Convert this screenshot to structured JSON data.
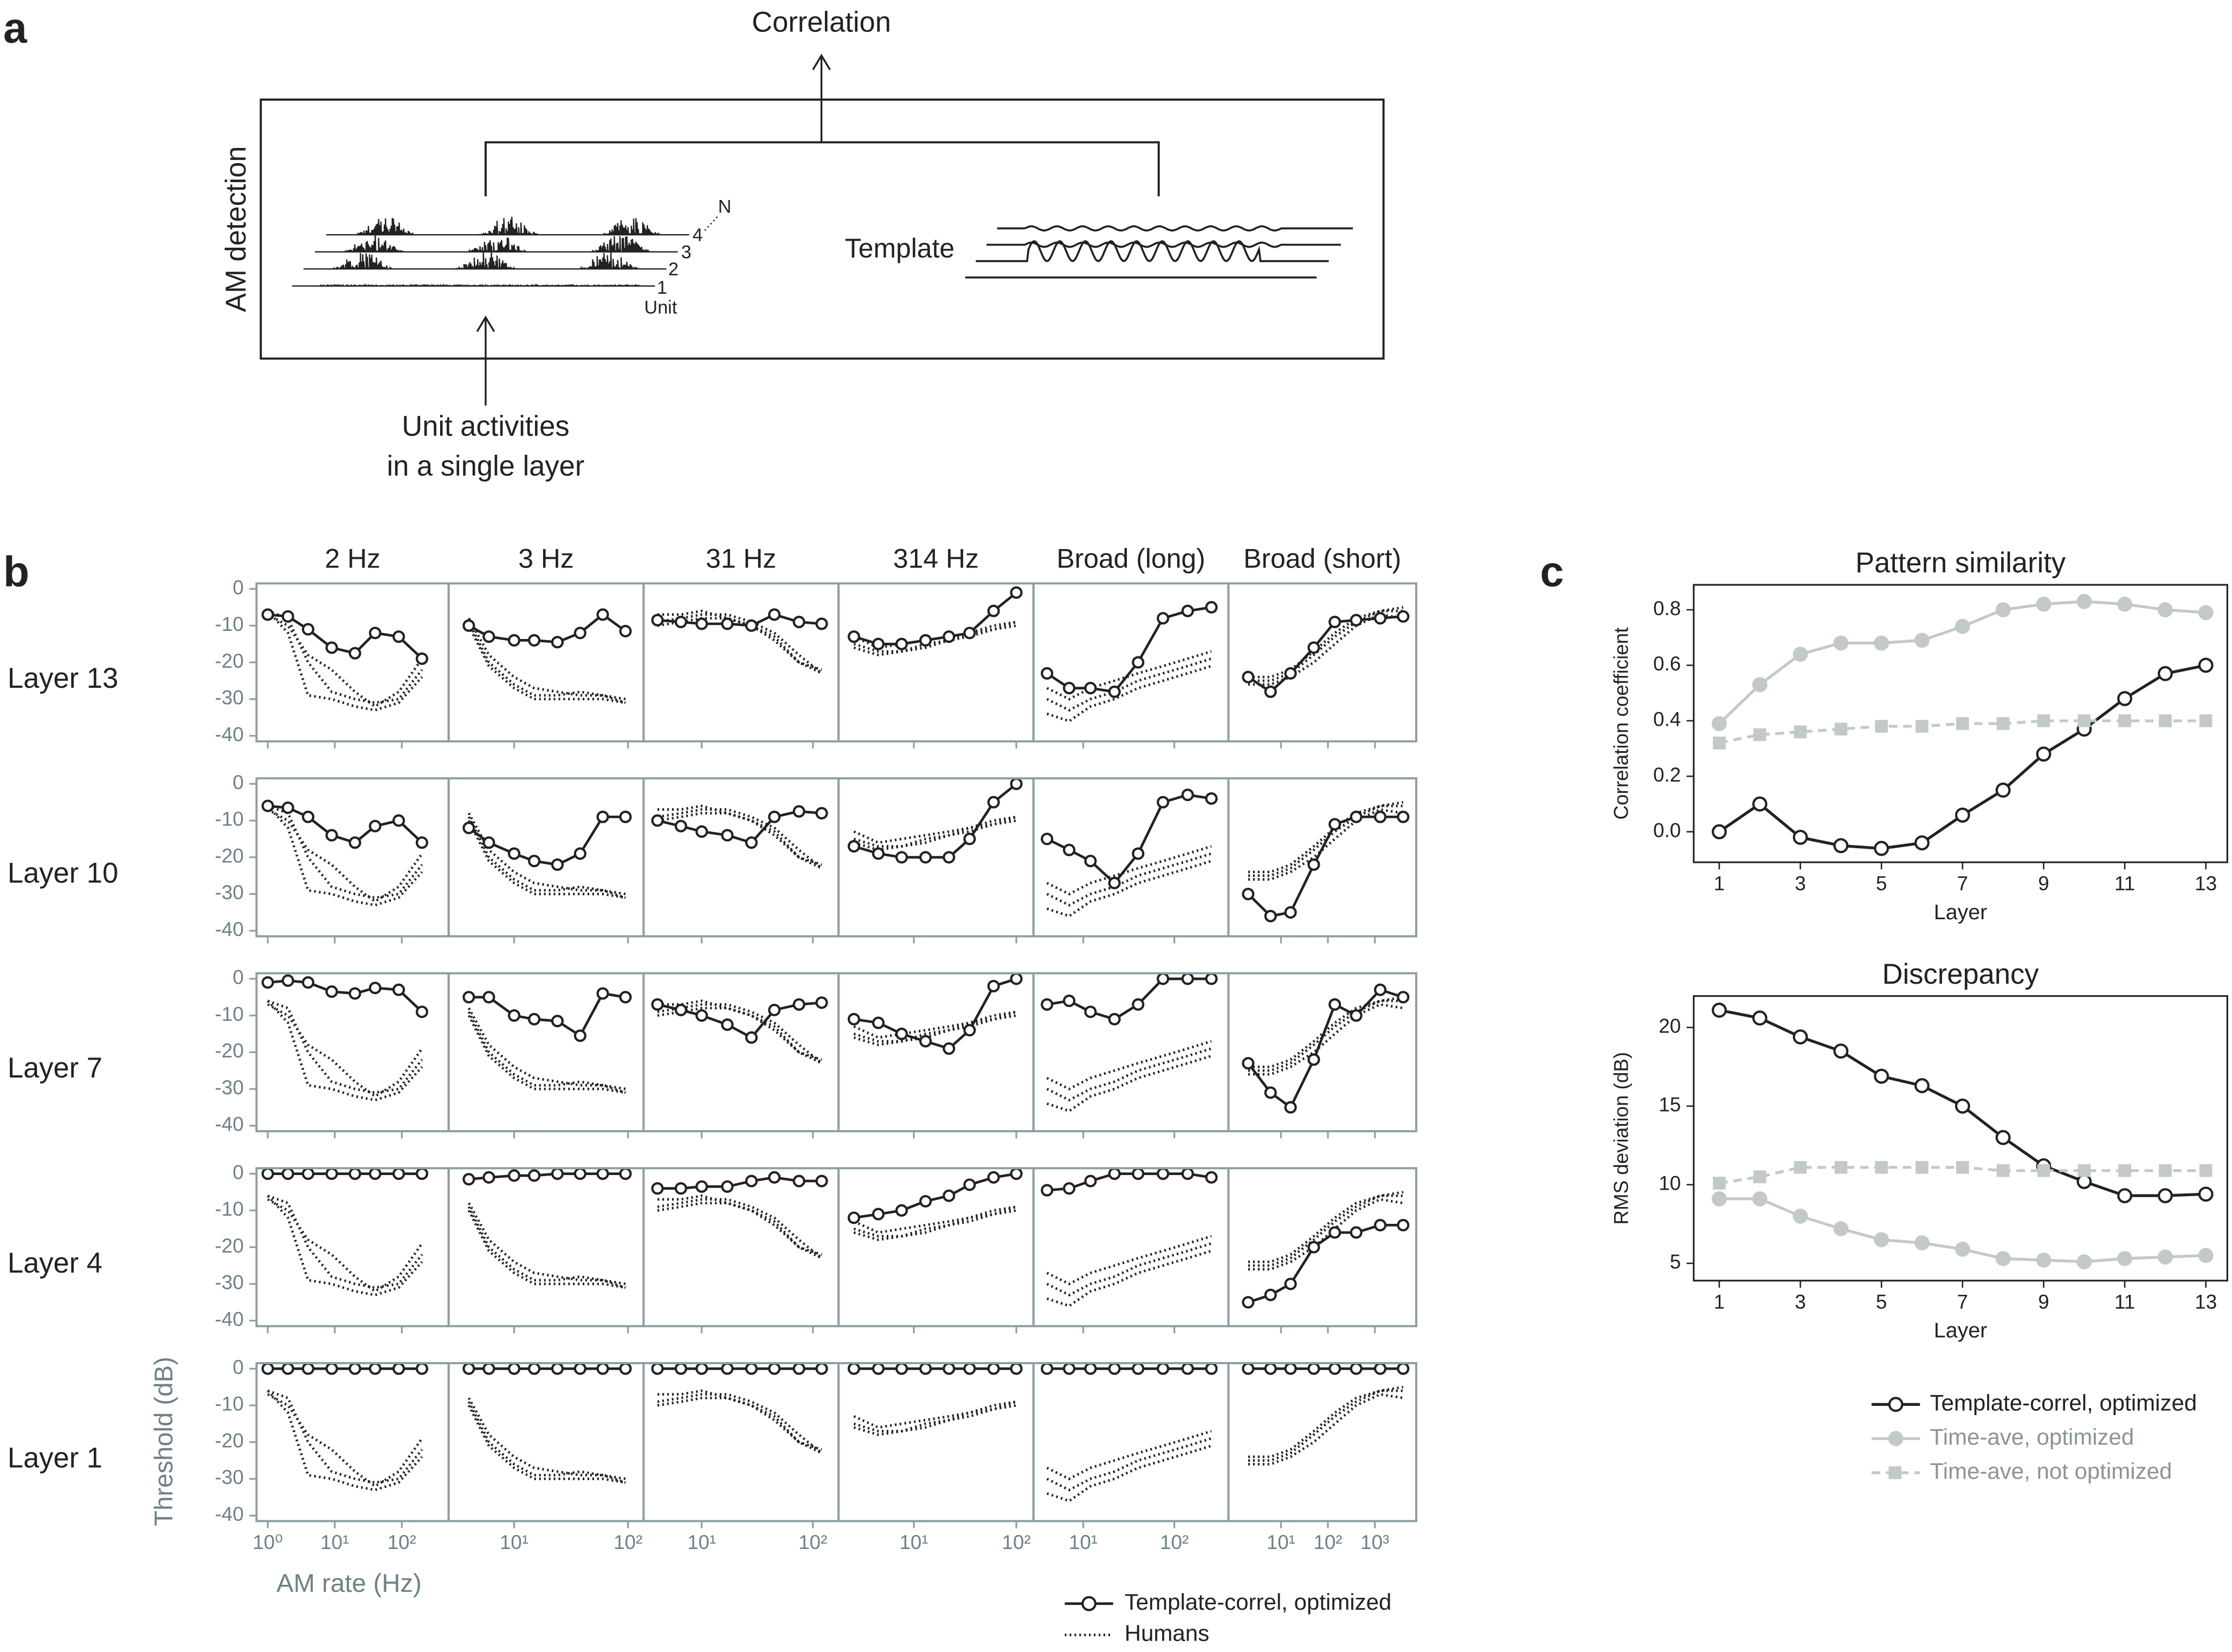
{
  "panel_labels": [
    "a",
    "b",
    "c"
  ],
  "diagram": {
    "title": "Correlation",
    "side_label": "AM detection",
    "template_label": "Template",
    "unit_label": "Unit",
    "unit_numbers": [
      "1",
      "2",
      "3",
      "4",
      "N"
    ],
    "input_label": [
      "Unit activities",
      "in a single layer"
    ]
  },
  "chart_data": [
    {
      "type": "facets",
      "columns": [
        "2 Hz",
        "3 Hz",
        "31 Hz",
        "314 Hz",
        "Broad (long)",
        "Broad (short)"
      ],
      "rows": [
        "Layer 13",
        "Layer 10",
        "Layer 7",
        "Layer 4",
        "Layer 1"
      ],
      "ylabel": "Threshold (dB)",
      "xlabel": "AM rate (Hz)",
      "x_scale": "log",
      "ylim": [
        -41.5,
        1.5
      ],
      "yticks": [
        0,
        -10,
        -20,
        -30,
        -40
      ],
      "series": [
        {
          "name": "Template-correl, optimized",
          "color": "#222222",
          "dash": "solid"
        },
        {
          "name": "Humans",
          "color": "#222222",
          "dash": "dotted"
        }
      ],
      "panels": [
        {
          "xlim": [
            0.68,
            500
          ],
          "xticks": [
            {
              "value": 1,
              "label": "10⁰"
            },
            {
              "value": 10,
              "label": "10¹"
            },
            {
              "value": 100,
              "label": "10²"
            }
          ],
          "x": [
            1,
            2,
            4,
            9,
            20,
            40,
            90,
            200
          ],
          "template": [
            [
              -7,
              -7.5,
              -11,
              -16,
              -17.5,
              -12,
              -13,
              -19
            ],
            [
              -6,
              -6.5,
              -9,
              -14,
              -16,
              -11.5,
              -10,
              -16
            ],
            [
              -1,
              -0.5,
              -1,
              -3.5,
              -4,
              -2.5,
              -3,
              -9
            ],
            [
              0,
              0,
              0,
              0,
              0,
              0,
              0,
              0
            ],
            [
              0,
              0,
              0,
              0,
              0,
              0,
              0,
              0
            ]
          ],
          "humans": [
            [
              -6,
              -8,
              -20,
              -28,
              -30,
              -31,
              -30,
              -22
            ],
            [
              -7,
              -10,
              -18,
              -22,
              -28,
              -32,
              -28,
              -19
            ],
            [
              -6,
              -12,
              -29,
              -30,
              -32,
              -33,
              -31,
              -24
            ]
          ]
        },
        {
          "xlim": [
            2.66,
            137
          ],
          "xticks": [
            {
              "value": 10,
              "label": "10¹"
            },
            {
              "value": 100,
              "label": "10²"
            }
          ],
          "x": [
            4,
            6,
            10,
            15,
            24,
            38,
            60,
            95
          ],
          "template": [
            [
              -10,
              -13,
              -14,
              -14,
              -14.5,
              -12,
              -7,
              -11.5
            ],
            [
              -12,
              -16,
              -19,
              -21,
              -22,
              -19,
              -9,
              -9
            ],
            [
              -5,
              -5,
              -10,
              -11,
              -11.5,
              -15.5,
              -4,
              -5
            ],
            [
              -1.5,
              -1,
              -0.5,
              -0.5,
              0,
              0,
              0,
              0
            ],
            [
              0,
              0,
              0,
              0,
              0,
              0,
              0,
              0
            ]
          ],
          "humans": [
            [
              -8,
              -18,
              -24,
              -27,
              -28,
              -29,
              -29,
              -30
            ],
            [
              -9,
              -20,
              -26,
              -29,
              -29,
              -28,
              -29,
              -31
            ],
            [
              -10,
              -21,
              -27,
              -30,
              -30,
              -30,
              -30,
              -31
            ]
          ]
        },
        {
          "xlim": [
            3,
            170
          ],
          "xticks": [
            {
              "value": 10,
              "label": "10¹"
            },
            {
              "value": 100,
              "label": "10²"
            }
          ],
          "x": [
            4,
            6.5,
            10,
            17,
            28,
            45,
            75,
            120
          ],
          "template": [
            [
              -8.5,
              -9,
              -9.5,
              -9.5,
              -10,
              -7,
              -9,
              -9.5
            ],
            [
              -10,
              -11.5,
              -13,
              -14,
              -16,
              -9,
              -7.5,
              -8
            ],
            [
              -7,
              -8.5,
              -10,
              -12.5,
              -16,
              -8.5,
              -7,
              -6.5
            ],
            [
              -4,
              -4,
              -3.5,
              -3.5,
              -2,
              -1,
              -2,
              -2
            ],
            [
              0,
              0,
              0,
              0,
              0,
              0,
              0,
              0
            ]
          ],
          "humans": [
            [
              -7,
              -7,
              -6,
              -8,
              -10,
              -13,
              -20,
              -23
            ],
            [
              -9,
              -8,
              -7,
              -7,
              -9,
              -12,
              -18,
              -23
            ],
            [
              -10,
              -9,
              -8,
              -8,
              -10,
              -14,
              -20,
              -22
            ]
          ]
        },
        {
          "xlim": [
            1.84,
            147
          ],
          "xticks": [
            {
              "value": 10,
              "label": "10¹"
            },
            {
              "value": 100,
              "label": "10²"
            }
          ],
          "x": [
            2.6,
            4.5,
            7.6,
            13,
            22,
            35,
            60,
            100
          ],
          "template": [
            [
              -13,
              -15,
              -15,
              -14,
              -13,
              -12,
              -6,
              -1
            ],
            [
              -17,
              -19,
              -20,
              -20,
              -20,
              -15,
              -5,
              0
            ],
            [
              -11,
              -12,
              -15,
              -17,
              -19,
              -14,
              -2,
              0
            ],
            [
              -12,
              -11,
              -10,
              -7.5,
              -6,
              -3,
              -1,
              0
            ],
            [
              0,
              0,
              0,
              0,
              0,
              0,
              0,
              0
            ]
          ],
          "humans": [
            [
              -13,
              -16,
              -15,
              -14,
              -13,
              -12,
              -10,
              -9
            ],
            [
              -15,
              -17,
              -17,
              -15,
              -14,
              -12,
              -11,
              -9
            ],
            [
              -16,
              -18,
              -17,
              -16,
              -14,
              -13,
              -11,
              -10
            ]
          ]
        },
        {
          "xlim": [
            2.84,
            392
          ],
          "xticks": [
            {
              "value": 10,
              "label": "10¹"
            },
            {
              "value": 100,
              "label": "10²"
            }
          ],
          "x": [
            4,
            7,
            12,
            22,
            40,
            75,
            140,
            255
          ],
          "template": [
            [
              -23,
              -27,
              -27,
              -28,
              -20,
              -8,
              -6,
              -5
            ],
            [
              -15,
              -18,
              -21,
              -27,
              -19,
              -5,
              -3,
              -4
            ],
            [
              -7,
              -6,
              -9,
              -11,
              -7,
              0,
              0,
              0
            ],
            [
              -4.5,
              -4,
              -2,
              0,
              0,
              0,
              0,
              -1
            ],
            [
              0,
              0,
              0,
              0,
              0,
              0,
              0,
              0
            ]
          ],
          "humans": [
            [
              -27,
              -30,
              -27,
              -25,
              -23,
              -21,
              -19,
              -17
            ],
            [
              -30,
              -33,
              -30,
              -28,
              -25,
              -23,
              -21,
              -19
            ],
            [
              -34,
              -36,
              -32,
              -30,
              -27,
              -25,
              -23,
              -21
            ]
          ]
        },
        {
          "xlim": [
            0.76,
            7600
          ],
          "xticks": [
            {
              "value": 10,
              "label": "10¹"
            },
            {
              "value": 100,
              "label": "10²"
            },
            {
              "value": 1000,
              "label": "10³"
            }
          ],
          "x": [
            2,
            6,
            16,
            50,
            140,
            400,
            1300,
            4000
          ],
          "template": [
            [
              -24,
              -28,
              -23,
              -16,
              -9,
              -8.5,
              -8,
              -7.5
            ],
            [
              -30,
              -36,
              -35,
              -22,
              -11,
              -9,
              -9,
              -9
            ],
            [
              -23,
              -31,
              -35,
              -22,
              -7,
              -10,
              -3,
              -5
            ],
            [
              -35,
              -33,
              -30,
              -20,
              -16,
              -16,
              -14,
              -14
            ],
            [
              0,
              0,
              0,
              0,
              0,
              0,
              0,
              0
            ]
          ],
          "humans": [
            [
              -24,
              -24,
              -22,
              -17,
              -12,
              -8,
              -6,
              -5
            ],
            [
              -25,
              -25,
              -23,
              -18,
              -13,
              -9,
              -6,
              -6
            ],
            [
              -26,
              -26,
              -24,
              -20,
              -15,
              -10,
              -7,
              -8
            ]
          ]
        }
      ]
    },
    {
      "type": "line",
      "title": "Pattern similarity",
      "xlabel": "Layer",
      "ylabel": "Correlation coefficient",
      "x": [
        1,
        2,
        3,
        4,
        5,
        6,
        7,
        8,
        9,
        10,
        11,
        12,
        13
      ],
      "xlim": [
        0.37,
        13.53
      ],
      "xticks": [
        1,
        3,
        5,
        7,
        9,
        11,
        13
      ],
      "ylim": [
        -0.11,
        0.89
      ],
      "yticks": [
        {
          "value": 0,
          "label": "0.0"
        },
        0.2,
        0.4,
        0.6,
        0.8
      ],
      "series": [
        {
          "color": "#222222",
          "marker": "open-circle",
          "dash": "solid",
          "values": [
            0,
            0.1,
            -0.02,
            -0.05,
            -0.06,
            -0.04,
            0.06,
            0.15,
            0.28,
            0.37,
            0.48,
            0.57,
            0.6
          ]
        },
        {
          "color": "#c3c9c9",
          "marker": "circle",
          "dash": "solid",
          "values": [
            0.39,
            0.53,
            0.64,
            0.68,
            0.68,
            0.69,
            0.74,
            0.8,
            0.82,
            0.83,
            0.82,
            0.8,
            0.79
          ]
        },
        {
          "color": "#c3c9c9",
          "marker": "square",
          "dash": "dashed",
          "values": [
            0.32,
            0.35,
            0.36,
            0.37,
            0.38,
            0.38,
            0.39,
            0.39,
            0.4,
            0.4,
            0.4,
            0.4,
            0.4
          ]
        }
      ]
    },
    {
      "type": "line",
      "title": "Discrepancy",
      "xlabel": "Layer",
      "ylabel": "RMS deviation (dB)",
      "x": [
        1,
        2,
        3,
        4,
        5,
        6,
        7,
        8,
        9,
        10,
        11,
        12,
        13
      ],
      "xlim": [
        0.37,
        13.53
      ],
      "xticks": [
        1,
        3,
        5,
        7,
        9,
        11,
        13
      ],
      "ylim": [
        3.9,
        22
      ],
      "yticks": [
        5,
        10,
        15,
        20
      ],
      "legend": "below",
      "series": [
        {
          "name": "Template-correl, optimized",
          "color": "#222222",
          "marker": "open-circle",
          "dash": "solid",
          "values": [
            21.1,
            20.6,
            19.4,
            18.5,
            16.9,
            16.3,
            15,
            13,
            11.2,
            10.2,
            9.3,
            9.3,
            9.4
          ]
        },
        {
          "name": "Time-ave, optimized",
          "color": "#c3c9c9",
          "marker": "circle",
          "dash": "solid",
          "values": [
            9.1,
            9.1,
            8,
            7.2,
            6.5,
            6.3,
            5.9,
            5.3,
            5.2,
            5.1,
            5.3,
            5.4,
            5.5
          ]
        },
        {
          "name": "Time-ave, not optimized",
          "color": "#c3c9c9",
          "marker": "square",
          "dash": "dashed",
          "values": [
            10.1,
            10.5,
            11.1,
            11.1,
            11.1,
            11.1,
            11.1,
            10.9,
            10.9,
            10.9,
            10.9,
            10.9,
            10.9
          ]
        }
      ]
    }
  ]
}
